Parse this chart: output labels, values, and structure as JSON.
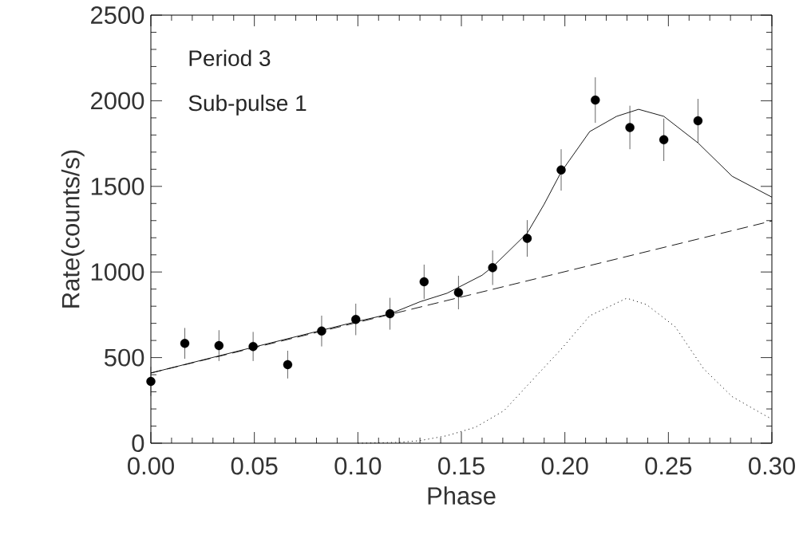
{
  "chart_data": {
    "type": "scatter",
    "xlabel": "Phase",
    "ylabel": "Rate(counts/s)",
    "annotations": [
      "Period 3",
      "Sub-pulse 1"
    ],
    "xlim": [
      0,
      0.3
    ],
    "ylim": [
      0,
      2500
    ],
    "xticks": [
      {
        "value": 0,
        "label": "0.00"
      },
      {
        "value": 0.05,
        "label": "0.05"
      },
      {
        "value": 0.1,
        "label": "0.10"
      },
      {
        "value": 0.15,
        "label": "0.15"
      },
      {
        "value": 0.2,
        "label": "0.20"
      },
      {
        "value": 0.25,
        "label": "0.25"
      },
      {
        "value": 0.3,
        "label": "0.30"
      }
    ],
    "yticks": [
      0,
      500,
      1000,
      1500,
      2000,
      2500
    ],
    "series": [
      {
        "type": "scatter",
        "color": "#000000",
        "marker": "circle",
        "x": [
          0.0,
          0.0164,
          0.0329,
          0.0494,
          0.0661,
          0.0825,
          0.099,
          0.1155,
          0.132,
          0.1486,
          0.1651,
          0.1818,
          0.1982,
          0.2147,
          0.2314,
          0.2478,
          0.2643
        ],
        "values": [
          361,
          583,
          570,
          565,
          459,
          655,
          723,
          756,
          943,
          880,
          1025,
          1196,
          1596,
          2004,
          1844,
          1772,
          1883
        ],
        "errors": [
          85,
          90,
          90,
          85,
          81,
          90,
          92,
          93,
          100,
          98,
          101,
          107,
          121,
          133,
          127,
          124,
          128
        ]
      },
      {
        "type": "line",
        "color": "#000000",
        "marker": "none",
        "line_style": "solid",
        "x": [
          0.0,
          0.05,
          0.1,
          0.1155,
          0.13,
          0.1431,
          0.16,
          0.1651,
          0.1818,
          0.19,
          0.1982,
          0.212,
          0.225,
          0.2356,
          0.2478,
          0.2643,
          0.2808,
          0.3
        ],
        "values": [
          410,
          562,
          712,
          755,
          826,
          876,
          981,
          1030,
          1227,
          1396,
          1584,
          1820,
          1909,
          1950,
          1909,
          1754,
          1559,
          1437
        ]
      },
      {
        "type": "line",
        "color": "#000000",
        "marker": "none",
        "line_style": "dashed",
        "x": [
          0.0,
          0.3
        ],
        "values": [
          410,
          1298
        ]
      },
      {
        "type": "line",
        "color": "#000000",
        "marker": "none",
        "line_style": "dotted",
        "x": [
          0.1,
          0.12,
          0.13,
          0.1431,
          0.1568,
          0.1706,
          0.1844,
          0.1982,
          0.212,
          0.2299,
          0.2395,
          0.2533,
          0.267,
          0.2808,
          0.2973,
          0.3
        ],
        "values": [
          0,
          5,
          15,
          44,
          93,
          190,
          370,
          549,
          744,
          847,
          809,
          680,
          435,
          272,
          158,
          141
        ]
      }
    ]
  }
}
